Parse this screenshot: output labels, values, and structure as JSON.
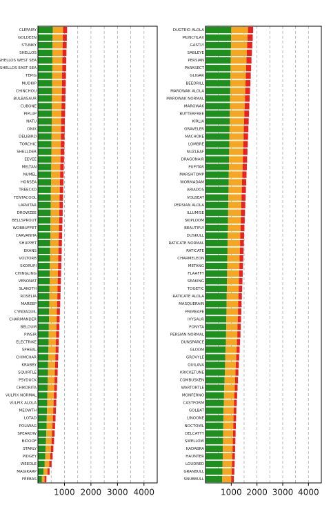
{
  "chart_data": [
    {
      "type": "bar",
      "horizontal": true,
      "categories": [
        "CLEFAIRY",
        "GOLDEEN",
        "STUNKY",
        "SHELLOS",
        "SHELLOS WEST SEA",
        "SHELLOS EAST SEA",
        "TEPIG",
        "MUDKIP",
        "CHINCHOU",
        "BULBASAUR",
        "CUBONE",
        "PIPLUP",
        "NATU",
        "ONIX",
        "DELIBIRD",
        "TORCHIC",
        "SHELLDER",
        "EEVEE",
        "MELTAN",
        "NUMEL",
        "HORSEA",
        "TREECKO",
        "TENTACOOL",
        "LARVITAR",
        "DROWZEE",
        "BELLSPROUT",
        "WOBBUFFET",
        "CARVANHA",
        "SHUPPET",
        "EKANS",
        "VOLTORB",
        "SKORUPI",
        "CHINGLING",
        "VENONAT",
        "SLAKOTH",
        "ROSELIA",
        "MAREEP",
        "CYNDAQUIL",
        "CHARMANDER",
        "BELDUM",
        "PINSIR",
        "ELECTRIKE",
        "SPHEAL",
        "CHIMCHAR",
        "KRABBY",
        "SQUIRTLE",
        "PSYDUCK",
        "CHIKORITA",
        "VULPIX NORMAL",
        "VULPIX ALOLA",
        "MEOWTH",
        "LOTAD",
        "POLIWAG",
        "SPEAROW",
        "BIDOOF",
        "STARLY",
        "PIDGEY",
        "WEEDLE",
        "MAGIKARP",
        "FEEBAS"
      ],
      "series": [
        {
          "color": "#1f8f1f",
          "values": [
            560,
            555,
            550,
            548,
            545,
            545,
            540,
            538,
            535,
            530,
            528,
            525,
            520,
            518,
            515,
            512,
            510,
            505,
            500,
            498,
            495,
            490,
            487,
            483,
            480,
            476,
            472,
            468,
            464,
            460,
            455,
            450,
            446,
            442,
            438,
            433,
            428,
            423,
            418,
            413,
            408,
            402,
            396,
            390,
            384,
            378,
            372,
            365,
            358,
            350,
            342,
            334,
            325,
            315,
            305,
            290,
            275,
            255,
            210,
            150
          ]
        },
        {
          "color": "#f5a623",
          "values": [
            390,
            385,
            385,
            380,
            378,
            375,
            372,
            370,
            368,
            365,
            362,
            360,
            357,
            355,
            352,
            350,
            347,
            345,
            342,
            340,
            337,
            335,
            332,
            330,
            327,
            325,
            322,
            320,
            317,
            315,
            312,
            310,
            307,
            305,
            302,
            300,
            296,
            292,
            288,
            284,
            280,
            276,
            272,
            268,
            264,
            260,
            255,
            250,
            245,
            240,
            235,
            230,
            224,
            218,
            210,
            200,
            190,
            175,
            150,
            100
          ]
        },
        {
          "color": "#e8231f",
          "values": [
            150,
            150,
            148,
            148,
            146,
            145,
            145,
            144,
            143,
            142,
            141,
            140,
            139,
            138,
            137,
            136,
            135,
            134,
            133,
            132,
            131,
            130,
            129,
            128,
            127,
            126,
            125,
            124,
            123,
            122,
            121,
            120,
            119,
            118,
            117,
            116,
            115,
            114,
            113,
            112,
            111,
            110,
            109,
            108,
            107,
            106,
            105,
            104,
            103,
            102,
            101,
            100,
            98,
            96,
            94,
            92,
            90,
            86,
            80,
            70
          ]
        }
      ],
      "xlim": [
        0,
        4500
      ],
      "xticks": [
        1000,
        2000,
        3000,
        4000
      ],
      "xminor": [
        500,
        1500,
        2500,
        3500
      ],
      "grid": true
    },
    {
      "type": "bar",
      "horizontal": true,
      "categories": [
        "DUGTRIO ALOLA",
        "MUNCHLAX",
        "GASTLY",
        "SABLEYE",
        "PERSIAN",
        "PARASECT",
        "GLIGAR",
        "BEEDRILL",
        "MAROWAK ALOLA",
        "MAROWAK NORMAL",
        "MAROWAK",
        "BUTTERFREE",
        "KIRLIA",
        "GRAVELER",
        "MACHOKE",
        "LOMBRE",
        "NUZLEAF",
        "DRAGONAIR",
        "PUPITAR",
        "MARSHTOMP",
        "WORMADAM",
        "ARIADOS",
        "VOLBEAT",
        "PERSIAN ALOLA",
        "ILLUMISE",
        "SKIPLOOM",
        "BEAUTIFLY",
        "DUSKULL",
        "RATICATE NORMAL",
        "RATICATE",
        "CHARMELEON",
        "METANG",
        "FLAAFFY",
        "SEAKING",
        "TOGETIC",
        "RATICATE ALOLA",
        "MASQUERAIN",
        "PRIMEAPE",
        "IVYSAUR",
        "PONYTA",
        "PERSIAN NORMAL",
        "DUNSPARCE",
        "GLOOM",
        "GROVYLE",
        "QUILAVA",
        "KRICKETUNE",
        "COMBUSKEN",
        "WARTORTLE",
        "MONFERNO",
        "CASTFORM",
        "GOLBAT",
        "LINOONE",
        "NOCTOWL",
        "DELCATTY",
        "SWELLOW",
        "KADABRA",
        "HAUNTER",
        "LOUDRED",
        "GRANBULL",
        "SNUBBULL"
      ],
      "series": [
        {
          "color": "#1f8f1f",
          "values": [
            1000,
            995,
            990,
            985,
            980,
            975,
            970,
            965,
            960,
            955,
            950,
            945,
            940,
            935,
            930,
            925,
            920,
            915,
            910,
            905,
            900,
            895,
            890,
            885,
            880,
            875,
            870,
            865,
            860,
            855,
            850,
            845,
            840,
            835,
            830,
            825,
            820,
            815,
            810,
            805,
            800,
            790,
            780,
            770,
            760,
            750,
            740,
            730,
            720,
            710,
            700,
            695,
            690,
            685,
            680,
            675,
            670,
            665,
            660,
            650
          ]
        },
        {
          "color": "#f5a623",
          "values": [
            650,
            640,
            630,
            620,
            612,
            605,
            598,
            590,
            584,
            578,
            572,
            566,
            560,
            555,
            550,
            545,
            540,
            535,
            530,
            525,
            520,
            515,
            510,
            505,
            500,
            496,
            492,
            488,
            484,
            480,
            476,
            472,
            468,
            464,
            460,
            456,
            452,
            448,
            444,
            440,
            436,
            432,
            428,
            424,
            420,
            416,
            412,
            408,
            404,
            400,
            396,
            392,
            388,
            384,
            380,
            376,
            372,
            368,
            360,
            350
          ]
        },
        {
          "color": "#e8231f",
          "values": [
            200,
            200,
            198,
            196,
            194,
            192,
            190,
            188,
            186,
            184,
            182,
            180,
            178,
            176,
            174,
            172,
            170,
            168,
            166,
            164,
            162,
            160,
            158,
            156,
            154,
            152,
            150,
            148,
            146,
            144,
            142,
            140,
            138,
            136,
            134,
            132,
            130,
            128,
            126,
            124,
            122,
            120,
            118,
            116,
            114,
            112,
            110,
            108,
            106,
            104,
            103,
            102,
            101,
            100,
            100,
            100,
            100,
            100,
            100,
            100
          ]
        }
      ],
      "xlim": [
        0,
        4500
      ],
      "xticks": [
        1000,
        2000,
        3000,
        4000
      ],
      "xminor": [
        500,
        1500,
        2500,
        3500
      ],
      "grid": true
    }
  ]
}
